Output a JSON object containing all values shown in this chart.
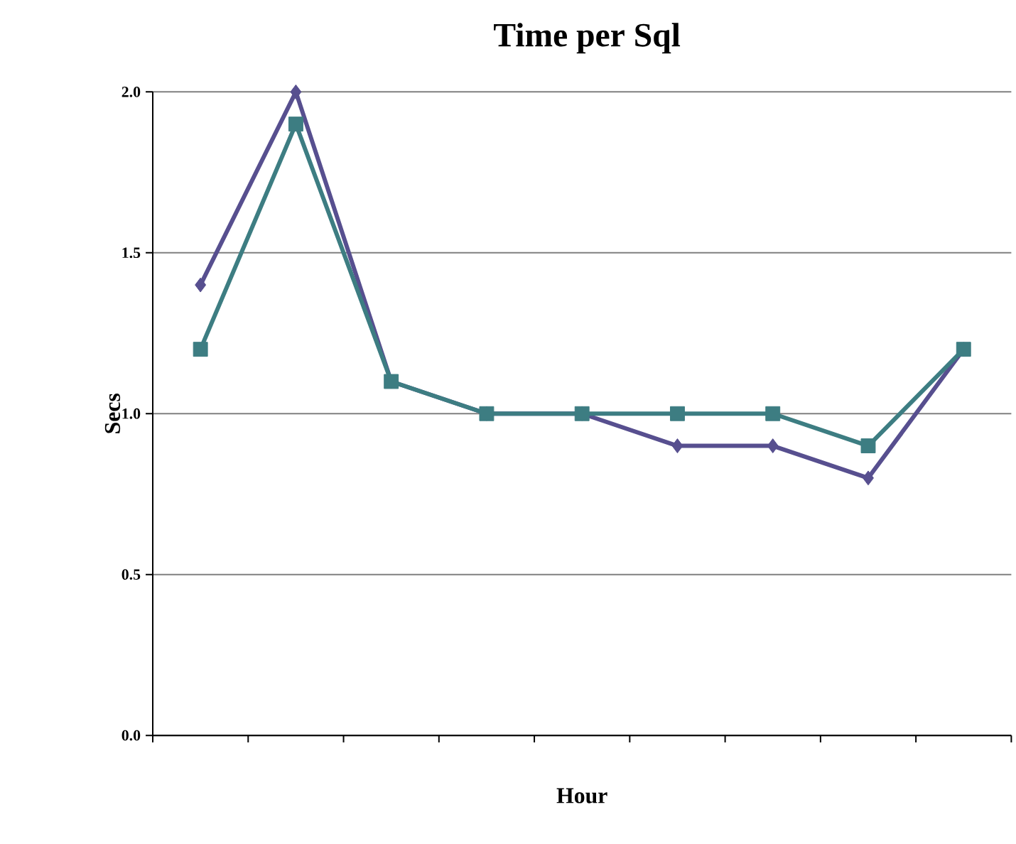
{
  "chart_data": {
    "type": "line",
    "title": "Time per Sql",
    "xlabel": "Hour",
    "ylabel": "Secs",
    "categories": [
      null,
      null,
      null,
      null,
      null,
      null,
      null,
      null,
      null
    ],
    "series": [
      {
        "color": "#574f8f",
        "marker": "diamond",
        "values": [
          1.4,
          2.0,
          1.1,
          1.0,
          1.0,
          0.9,
          0.9,
          0.8,
          1.2
        ]
      },
      {
        "color": "#3d7d82",
        "marker": "square",
        "values": [
          1.2,
          1.9,
          1.1,
          1.0,
          1.0,
          1.0,
          1.0,
          0.9,
          1.2
        ]
      }
    ],
    "ylim": [
      0,
      2
    ],
    "yticks": [
      {
        "value": 0,
        "label": "0.0"
      },
      {
        "value": 0.5,
        "label": "0.5"
      },
      {
        "value": 1,
        "label": "1.0"
      },
      {
        "value": 1.5,
        "label": "1.5"
      },
      {
        "value": 2,
        "label": "2.0"
      }
    ],
    "grid": "y",
    "tick_labels": "y"
  }
}
